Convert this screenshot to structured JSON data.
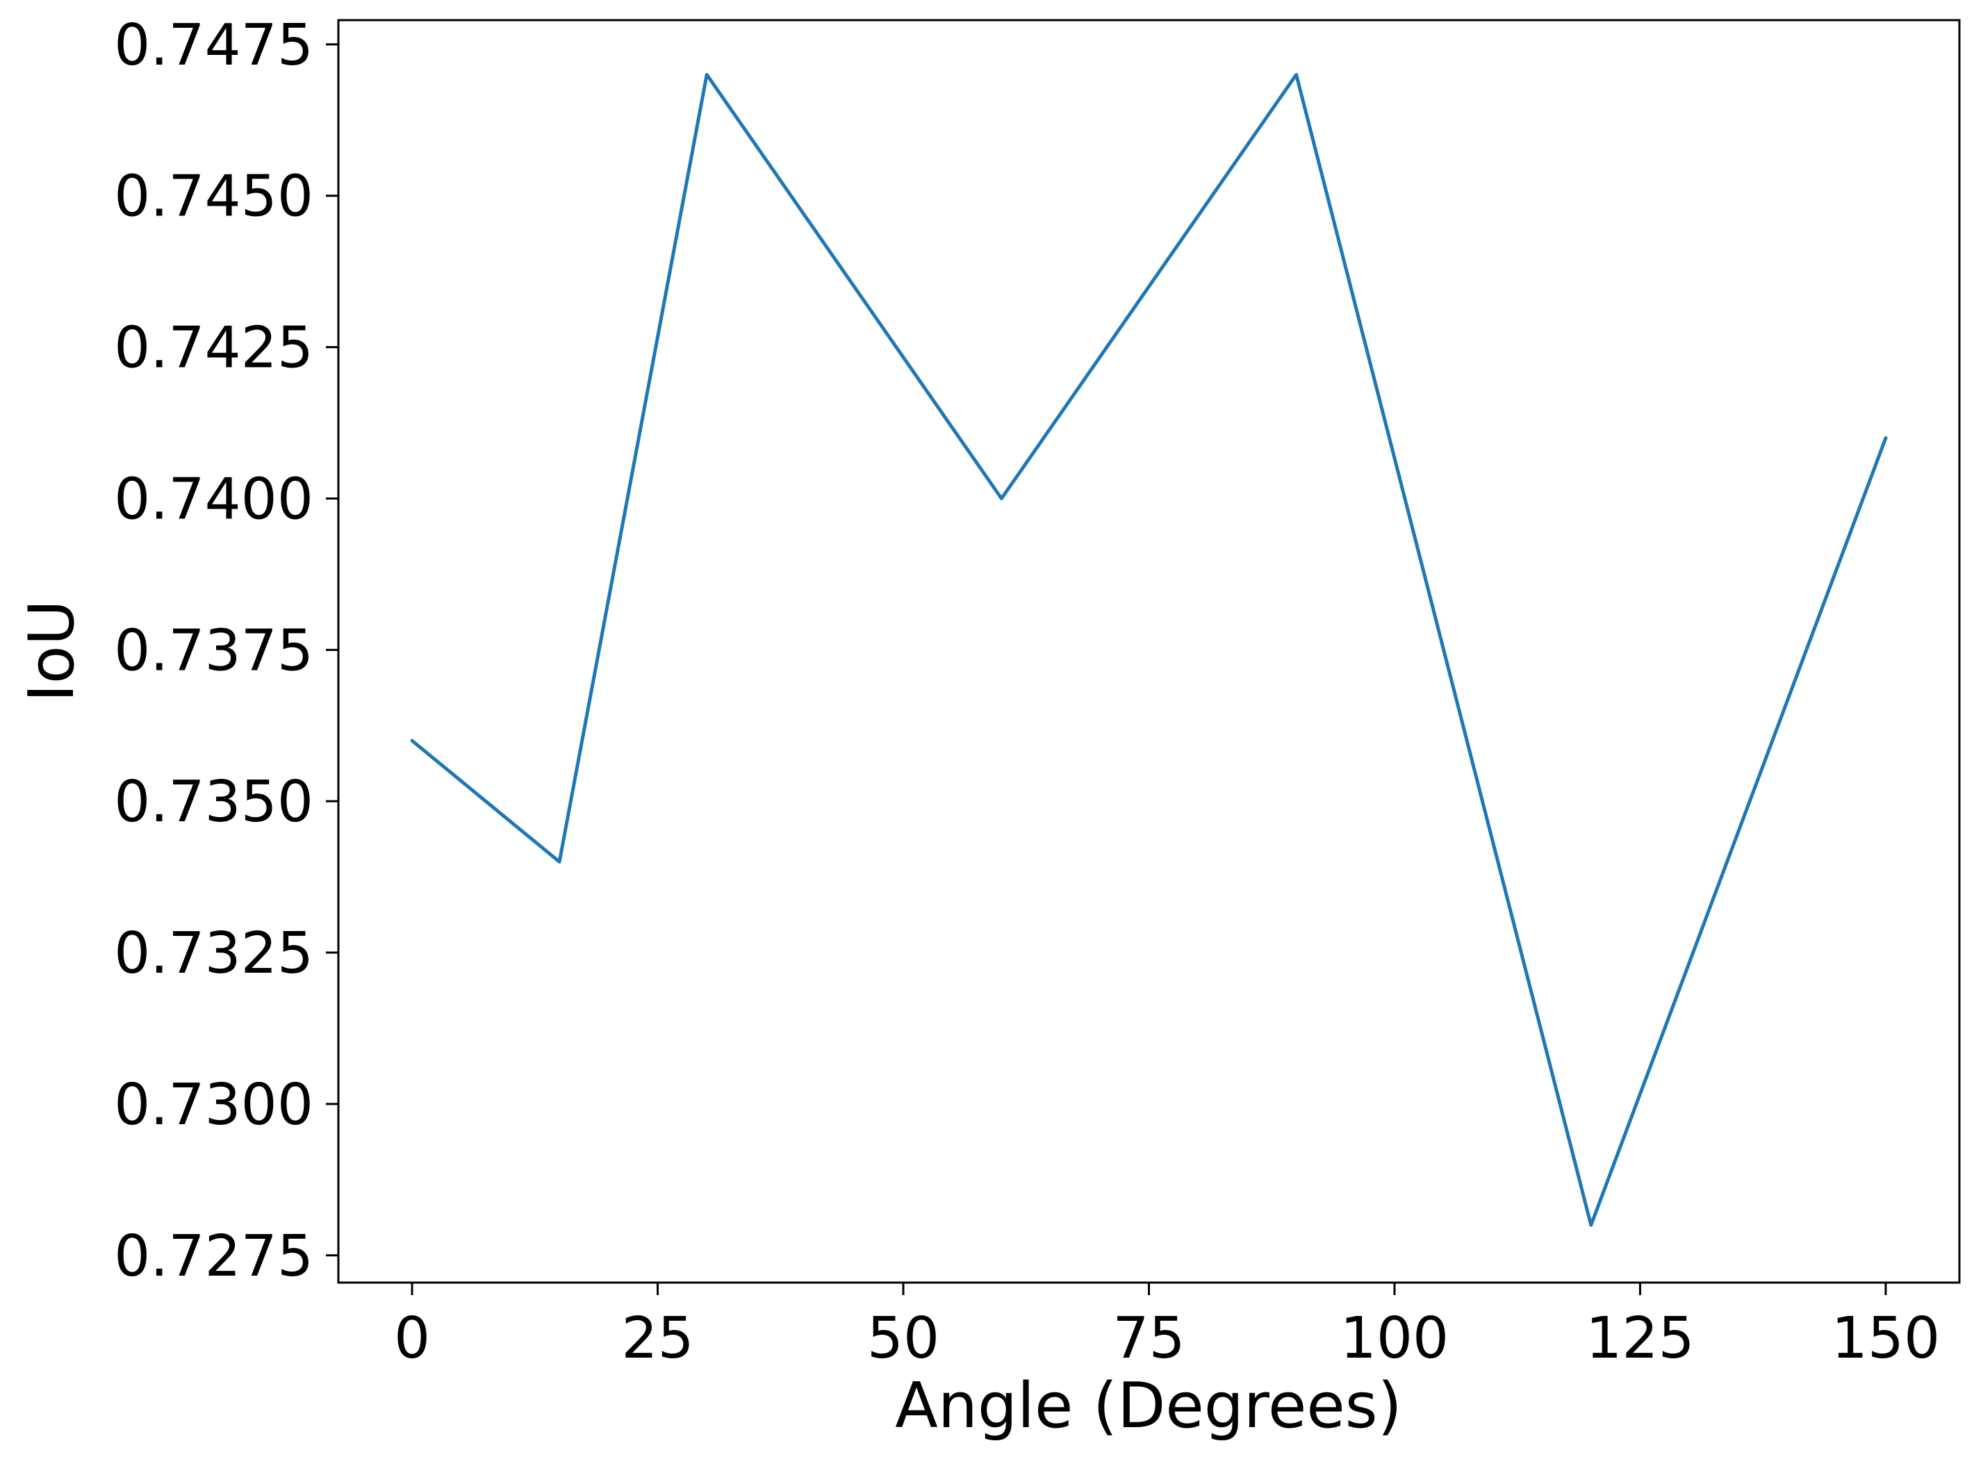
{
  "chart_data": {
    "type": "line",
    "title": "",
    "xlabel": "Angle (Degrees)",
    "ylabel": "IoU",
    "xlim": [
      -7.5,
      157.5
    ],
    "ylim": [
      0.72705,
      0.7479
    ],
    "xticks": [
      0,
      25,
      50,
      75,
      100,
      125,
      150
    ],
    "xtick_labels": [
      "0",
      "25",
      "50",
      "75",
      "100",
      "125",
      "150"
    ],
    "yticks": [
      0.7275,
      0.73,
      0.7325,
      0.735,
      0.7375,
      0.74,
      0.7425,
      0.745,
      0.7475
    ],
    "ytick_labels": [
      "0.7275",
      "0.7300",
      "0.7325",
      "0.7350",
      "0.7375",
      "0.7400",
      "0.7425",
      "0.7450",
      "0.7475"
    ],
    "grid": false,
    "series": [
      {
        "color": "#1f77b4",
        "x": [
          0,
          15,
          30,
          60,
          90,
          120,
          150
        ],
        "y": [
          0.736,
          0.734,
          0.747,
          0.74,
          0.747,
          0.728,
          0.741
        ]
      }
    ]
  }
}
